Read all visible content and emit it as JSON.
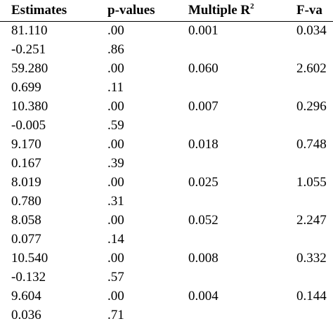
{
  "headers": {
    "estimates": "Estimates",
    "p_values": "p-values",
    "multiple_r": "Multiple R",
    "multiple_r_sup": "2",
    "f_value": "F-va"
  },
  "rows": [
    {
      "estimate": "81.110",
      "p": ".00",
      "r2": "0.001",
      "f": "0.034"
    },
    {
      "estimate": "-0.251",
      "p": ".86",
      "r2": "",
      "f": ""
    },
    {
      "estimate": "59.280",
      "p": ".00",
      "r2": "0.060",
      "f": "2.602"
    },
    {
      "estimate": "0.699",
      "p": ".11",
      "r2": "",
      "f": ""
    },
    {
      "estimate": "10.380",
      "p": ".00",
      "r2": "0.007",
      "f": "0.296"
    },
    {
      "estimate": "-0.005",
      "p": ".59",
      "r2": "",
      "f": ""
    },
    {
      "estimate": "9.170",
      "p": ".00",
      "r2": "0.018",
      "f": "0.748"
    },
    {
      "estimate": "0.167",
      "p": ".39",
      "r2": "",
      "f": ""
    },
    {
      "estimate": "8.019",
      "p": ".00",
      "r2": "0.025",
      "f": "1.055"
    },
    {
      "estimate": "0.780",
      "p": ".31",
      "r2": "",
      "f": ""
    },
    {
      "estimate": "8.058",
      "p": ".00",
      "r2": "0.052",
      "f": "2.247"
    },
    {
      "estimate": "0.077",
      "p": ".14",
      "r2": "",
      "f": ""
    },
    {
      "estimate": "10.540",
      "p": ".00",
      "r2": "0.008",
      "f": "0.332"
    },
    {
      "estimate": "-0.132",
      "p": ".57",
      "r2": "",
      "f": ""
    },
    {
      "estimate": "9.604",
      "p": ".00",
      "r2": "0.004",
      "f": "0.144"
    },
    {
      "estimate": "0.036",
      "p": ".71",
      "r2": "",
      "f": ""
    }
  ]
}
